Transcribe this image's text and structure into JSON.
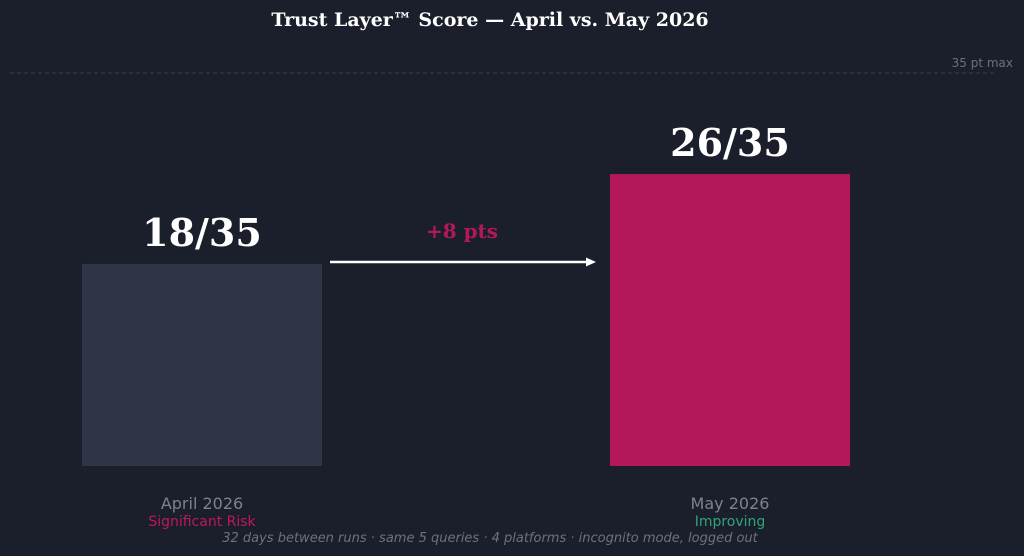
{
  "chart_data": {
    "type": "bar",
    "title": "Trust Layer™ Score — April vs. May 2026",
    "categories": [
      "April 2026",
      "May 2026"
    ],
    "values": [
      18,
      26
    ],
    "value_labels": [
      "18/35",
      "26/35"
    ],
    "status_labels": [
      "Significant Risk",
      "Improving"
    ],
    "ylim": [
      0,
      35
    ],
    "max_line_label": "35 pt max",
    "delta_label": "+8 pts",
    "footnote": "32 days between runs  ·  same 5 queries  ·  4 platforms  ·  incognito mode, logged out",
    "grid": false,
    "legend": "none"
  },
  "colors": {
    "background": "#1b1f2b",
    "bar_april": "#2f3546",
    "bar_may": "#b3185a",
    "delta": "#b3185a",
    "status_risk": "#c0175c",
    "status_improving": "#2fa37a",
    "category_text": "#7d8290",
    "max_line": "#3a3f4c",
    "max_label": "#6c7180",
    "footnote": "#6c7180",
    "title": "#ffffff",
    "arrow": "#ffffff"
  }
}
